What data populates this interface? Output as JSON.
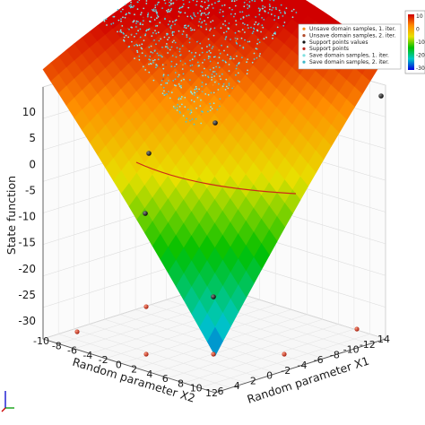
{
  "chart_data": {
    "type": "surface3d",
    "title": "",
    "zlabel": "State function",
    "x1label": "Random parameter X1",
    "x2label": "Random parameter X2",
    "z_ticks": [
      "10",
      "5",
      "0",
      "-5",
      "-10",
      "-15",
      "-20",
      "-25",
      "-30"
    ],
    "x1_ticks": [
      "6",
      "4",
      "2",
      "0",
      "-2",
      "-4",
      "-6",
      "-8",
      "-10",
      "-12",
      "14"
    ],
    "x2_ticks": [
      "-10",
      "-8",
      "-6",
      "-4",
      "-2",
      "0",
      "2",
      "4",
      "6",
      "8",
      "10",
      "12"
    ],
    "zlim": [
      -30,
      10
    ],
    "grid": true,
    "legend_position": "top-right",
    "legend": [
      {
        "label": "Unsave domain samples, 1. iter.",
        "color": "#f08a1c"
      },
      {
        "label": "Unsave domain samples,  2. iter.",
        "color": "#b04a2a"
      },
      {
        "label": "Support points values",
        "color": "#111111"
      },
      {
        "label": "Support points",
        "color": "#c0281c"
      },
      {
        "label": "Save domain samples, 1. iter.",
        "color": "#7fe0e0"
      },
      {
        "label": "Save domain samples,  2. iter.",
        "color": "#3fb8c8"
      }
    ],
    "colorbar": {
      "ticks": [
        "10",
        "0",
        "-10",
        "-20",
        "-30"
      ],
      "colors": [
        "#d00000",
        "#ff8c00",
        "#e8e000",
        "#00c000",
        "#00c8c8",
        "#0000e0"
      ]
    },
    "support_points_values": [
      {
        "x1": 12,
        "x2": -10,
        "z": 11
      },
      {
        "x1": 3,
        "x2": -6,
        "z": 6
      },
      {
        "x1": -6,
        "x2": -4,
        "z": 8
      },
      {
        "x1": 3,
        "x2": 4,
        "z": -26
      },
      {
        "x1": -4,
        "x2": 6,
        "z": -10
      }
    ],
    "support_points": [
      {
        "x1": 12,
        "x2": -10
      },
      {
        "x1": 3,
        "x2": -6
      },
      {
        "x1": -6,
        "x2": -4
      },
      {
        "x1": 3,
        "x2": 4
      },
      {
        "x1": -4,
        "x2": 6
      },
      {
        "x1": 0,
        "x2": 2
      }
    ],
    "limit_state_curve": {
      "z": 0,
      "color": "#cc2a1a"
    }
  }
}
